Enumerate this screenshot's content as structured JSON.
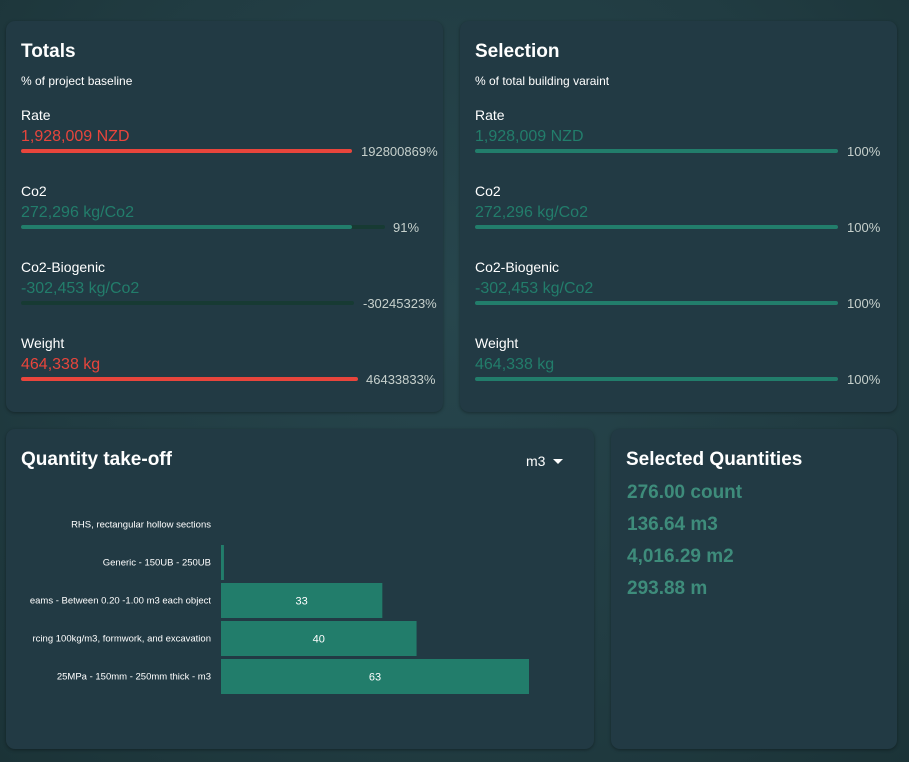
{
  "totals": {
    "title": "Totals",
    "subtitle": "% of project baseline",
    "metrics": [
      {
        "label": "Rate",
        "value": "1,928,009 NZD",
        "percent_text": "192800869%",
        "state": "over"
      },
      {
        "label": "Co2",
        "value": "272,296 kg/Co2",
        "percent_text": "91%",
        "state": "ok",
        "fill_fraction": 0.91
      },
      {
        "label": "Co2-Biogenic",
        "value": "-302,453 kg/Co2",
        "percent_text": "-30245323%",
        "state": "under"
      },
      {
        "label": "Weight",
        "value": "464,338 kg",
        "percent_text": "46433833%",
        "state": "over"
      }
    ]
  },
  "selection": {
    "title": "Selection",
    "subtitle": "% of total building varaint",
    "metrics": [
      {
        "label": "Rate",
        "value": "1,928,009 NZD",
        "percent_text": "100%"
      },
      {
        "label": "Co2",
        "value": "272,296 kg/Co2",
        "percent_text": "100%"
      },
      {
        "label": "Co2-Biogenic",
        "value": "-302,453 kg/Co2",
        "percent_text": "100%"
      },
      {
        "label": "Weight",
        "value": "464,338 kg",
        "percent_text": "100%"
      }
    ]
  },
  "quantity_takeoff": {
    "title": "Quantity take-off",
    "unit": "m3"
  },
  "chart_data": {
    "type": "bar",
    "orientation": "horizontal",
    "categories": [
      "RHS, rectangular hollow sections",
      "Generic - 150UB - 250UB",
      "eams - Between 0.20 -1.00 m3 each object",
      "rcing 100kg/m3, formwork, and excavation",
      "25MPa - 150mm - 250mm thick - m3"
    ],
    "values": [
      0,
      0.6,
      33,
      40,
      63
    ],
    "data_labels": [
      "",
      "",
      "33",
      "40",
      "63"
    ],
    "xlim": [
      0,
      63
    ]
  },
  "selected_quantities": {
    "title": "Selected Quantities",
    "items": [
      "276.00 count",
      "136.64 m3",
      "4,016.29 m2",
      "293.88 m"
    ]
  },
  "colors": {
    "red": "#e8453c",
    "teal": "#227d6b",
    "teal_dark": "#1a3d36",
    "teal_text": "#3e8c7b",
    "card_bg": "#223a44"
  }
}
